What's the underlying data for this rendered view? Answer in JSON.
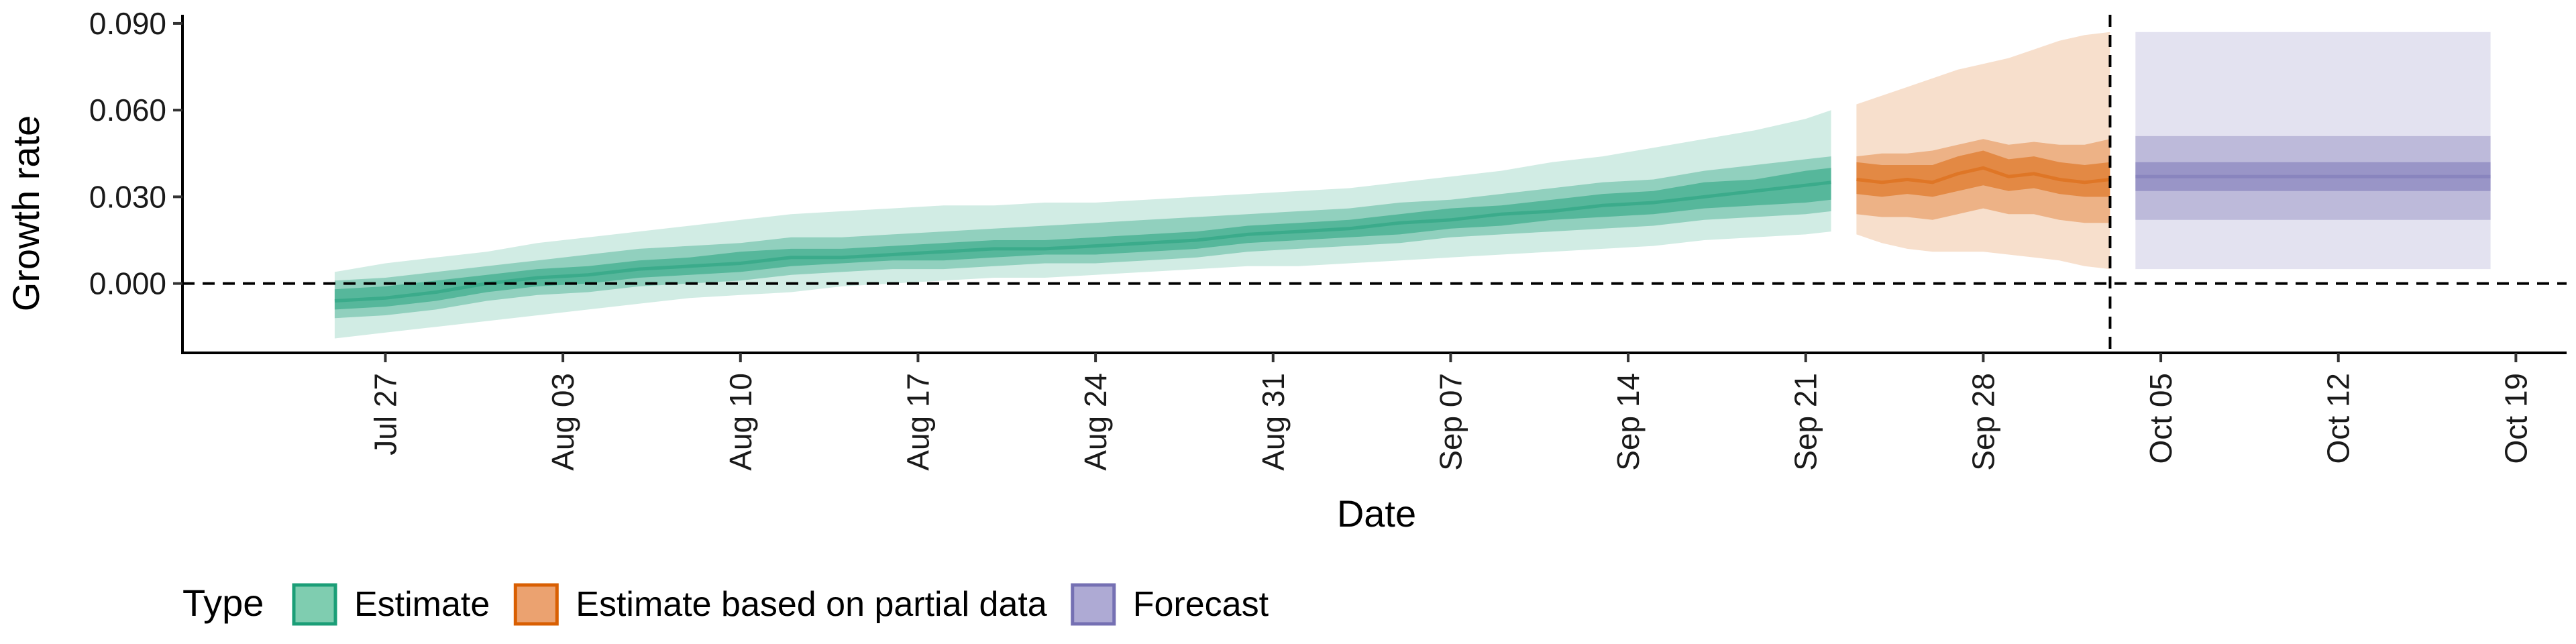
{
  "chart_data": {
    "type": "area",
    "xlabel": "Date",
    "ylabel": "Growth rate",
    "x_ticks": [
      "Jul 27",
      "Aug 03",
      "Aug 10",
      "Aug 17",
      "Aug 24",
      "Aug 31",
      "Sep 07",
      "Sep 14",
      "Sep 21",
      "Sep 28",
      "Oct 05",
      "Oct 12",
      "Oct 19"
    ],
    "x_tick_dates": [
      "2020-07-27",
      "2020-08-03",
      "2020-08-10",
      "2020-08-17",
      "2020-08-24",
      "2020-08-31",
      "2020-09-07",
      "2020-09-14",
      "2020-09-21",
      "2020-09-28",
      "2020-10-05",
      "2020-10-12",
      "2020-10-19"
    ],
    "xlim": [
      "2020-07-19",
      "2020-10-21"
    ],
    "y_ticks": [
      0.0,
      0.03,
      0.06,
      0.09
    ],
    "y_tick_labels": [
      "0.000",
      "0.030",
      "0.060",
      "0.090"
    ],
    "ylim": [
      -0.024,
      0.093
    ],
    "reference_lines": {
      "horizontal_y": 0.0,
      "vertical_x": "2020-10-03"
    },
    "legend": {
      "position": "bottom-left",
      "title": "Type",
      "entries": [
        {
          "label": "Estimate",
          "fill": "#7fcdb0",
          "stroke": "#1b9e77"
        },
        {
          "label": "Estimate based on partial data",
          "fill": "#eba270",
          "stroke": "#d95f02"
        },
        {
          "label": "Forecast",
          "fill": "#aeaad4",
          "stroke": "#7570b3"
        }
      ]
    },
    "series": [
      {
        "name": "Estimate",
        "color": "#1b9e77",
        "band_opacities": [
          0.2,
          0.35,
          0.5
        ],
        "x": [
          "2020-07-25",
          "2020-07-27",
          "2020-07-29",
          "2020-07-31",
          "2020-08-02",
          "2020-08-04",
          "2020-08-06",
          "2020-08-08",
          "2020-08-10",
          "2020-08-12",
          "2020-08-14",
          "2020-08-16",
          "2020-08-18",
          "2020-08-20",
          "2020-08-22",
          "2020-08-24",
          "2020-08-26",
          "2020-08-28",
          "2020-08-30",
          "2020-09-01",
          "2020-09-03",
          "2020-09-05",
          "2020-09-07",
          "2020-09-09",
          "2020-09-11",
          "2020-09-13",
          "2020-09-15",
          "2020-09-17",
          "2020-09-19",
          "2020-09-21",
          "2020-09-22"
        ],
        "median": [
          -0.006,
          -0.005,
          -0.003,
          0.0,
          0.002,
          0.003,
          0.005,
          0.006,
          0.007,
          0.009,
          0.009,
          0.01,
          0.011,
          0.012,
          0.012,
          0.013,
          0.014,
          0.015,
          0.017,
          0.018,
          0.019,
          0.021,
          0.022,
          0.024,
          0.025,
          0.027,
          0.028,
          0.03,
          0.032,
          0.034,
          0.035
        ],
        "inner": [
          [
            -0.009,
            -0.002
          ],
          [
            -0.008,
            -0.001
          ],
          [
            -0.006,
            0.001
          ],
          [
            -0.003,
            0.003
          ],
          [
            -0.001,
            0.005
          ],
          [
            0.0,
            0.006
          ],
          [
            0.002,
            0.008
          ],
          [
            0.003,
            0.009
          ],
          [
            0.004,
            0.011
          ],
          [
            0.006,
            0.012
          ],
          [
            0.007,
            0.012
          ],
          [
            0.008,
            0.013
          ],
          [
            0.008,
            0.014
          ],
          [
            0.009,
            0.015
          ],
          [
            0.01,
            0.015
          ],
          [
            0.01,
            0.016
          ],
          [
            0.011,
            0.017
          ],
          [
            0.012,
            0.018
          ],
          [
            0.014,
            0.02
          ],
          [
            0.015,
            0.021
          ],
          [
            0.016,
            0.022
          ],
          [
            0.017,
            0.024
          ],
          [
            0.019,
            0.026
          ],
          [
            0.02,
            0.027
          ],
          [
            0.022,
            0.029
          ],
          [
            0.023,
            0.031
          ],
          [
            0.024,
            0.032
          ],
          [
            0.026,
            0.035
          ],
          [
            0.027,
            0.036
          ],
          [
            0.028,
            0.039
          ],
          [
            0.029,
            0.04
          ]
        ],
        "middle": [
          [
            -0.012,
            0.001
          ],
          [
            -0.011,
            0.002
          ],
          [
            -0.009,
            0.004
          ],
          [
            -0.006,
            0.006
          ],
          [
            -0.004,
            0.008
          ],
          [
            -0.003,
            0.01
          ],
          [
            -0.001,
            0.012
          ],
          [
            0.0,
            0.013
          ],
          [
            0.001,
            0.014
          ],
          [
            0.003,
            0.016
          ],
          [
            0.004,
            0.016
          ],
          [
            0.005,
            0.017
          ],
          [
            0.005,
            0.018
          ],
          [
            0.006,
            0.019
          ],
          [
            0.007,
            0.02
          ],
          [
            0.007,
            0.021
          ],
          [
            0.008,
            0.022
          ],
          [
            0.009,
            0.023
          ],
          [
            0.011,
            0.024
          ],
          [
            0.012,
            0.025
          ],
          [
            0.013,
            0.026
          ],
          [
            0.014,
            0.028
          ],
          [
            0.016,
            0.029
          ],
          [
            0.017,
            0.031
          ],
          [
            0.018,
            0.033
          ],
          [
            0.019,
            0.035
          ],
          [
            0.02,
            0.036
          ],
          [
            0.022,
            0.039
          ],
          [
            0.023,
            0.041
          ],
          [
            0.024,
            0.043
          ],
          [
            0.025,
            0.044
          ]
        ],
        "outer": [
          [
            -0.019,
            0.004
          ],
          [
            -0.017,
            0.007
          ],
          [
            -0.015,
            0.009
          ],
          [
            -0.013,
            0.011
          ],
          [
            -0.011,
            0.014
          ],
          [
            -0.009,
            0.016
          ],
          [
            -0.007,
            0.018
          ],
          [
            -0.005,
            0.02
          ],
          [
            -0.004,
            0.022
          ],
          [
            -0.003,
            0.024
          ],
          [
            -0.001,
            0.025
          ],
          [
            0.0,
            0.026
          ],
          [
            0.001,
            0.027
          ],
          [
            0.002,
            0.027
          ],
          [
            0.002,
            0.028
          ],
          [
            0.003,
            0.028
          ],
          [
            0.004,
            0.029
          ],
          [
            0.005,
            0.03
          ],
          [
            0.006,
            0.031
          ],
          [
            0.006,
            0.032
          ],
          [
            0.007,
            0.033
          ],
          [
            0.008,
            0.035
          ],
          [
            0.009,
            0.037
          ],
          [
            0.01,
            0.039
          ],
          [
            0.011,
            0.042
          ],
          [
            0.012,
            0.044
          ],
          [
            0.013,
            0.047
          ],
          [
            0.015,
            0.05
          ],
          [
            0.016,
            0.053
          ],
          [
            0.017,
            0.057
          ],
          [
            0.018,
            0.06
          ]
        ]
      },
      {
        "name": "Estimate based on partial data",
        "color": "#d95f02",
        "band_opacities": [
          0.2,
          0.35,
          0.5
        ],
        "x": [
          "2020-09-23",
          "2020-09-24",
          "2020-09-25",
          "2020-09-26",
          "2020-09-27",
          "2020-09-28",
          "2020-09-29",
          "2020-09-30",
          "2020-10-01",
          "2020-10-02",
          "2020-10-03"
        ],
        "median": [
          0.036,
          0.035,
          0.036,
          0.035,
          0.038,
          0.04,
          0.037,
          0.038,
          0.036,
          0.035,
          0.036
        ],
        "inner": [
          [
            0.031,
            0.042
          ],
          [
            0.03,
            0.041
          ],
          [
            0.031,
            0.041
          ],
          [
            0.03,
            0.041
          ],
          [
            0.032,
            0.044
          ],
          [
            0.034,
            0.046
          ],
          [
            0.032,
            0.043
          ],
          [
            0.033,
            0.044
          ],
          [
            0.031,
            0.042
          ],
          [
            0.03,
            0.041
          ],
          [
            0.03,
            0.042
          ]
        ],
        "middle": [
          [
            0.024,
            0.044
          ],
          [
            0.023,
            0.045
          ],
          [
            0.023,
            0.045
          ],
          [
            0.022,
            0.046
          ],
          [
            0.024,
            0.048
          ],
          [
            0.026,
            0.05
          ],
          [
            0.024,
            0.048
          ],
          [
            0.024,
            0.049
          ],
          [
            0.022,
            0.048
          ],
          [
            0.021,
            0.048
          ],
          [
            0.021,
            0.05
          ]
        ],
        "outer": [
          [
            0.017,
            0.062
          ],
          [
            0.014,
            0.065
          ],
          [
            0.012,
            0.068
          ],
          [
            0.011,
            0.071
          ],
          [
            0.011,
            0.074
          ],
          [
            0.011,
            0.076
          ],
          [
            0.01,
            0.078
          ],
          [
            0.009,
            0.081
          ],
          [
            0.008,
            0.084
          ],
          [
            0.006,
            0.086
          ],
          [
            0.005,
            0.087
          ]
        ]
      },
      {
        "name": "Forecast",
        "color": "#7570b3",
        "band_opacities": [
          0.2,
          0.35,
          0.5
        ],
        "x": [
          "2020-10-04",
          "2020-10-18"
        ],
        "median": [
          0.037,
          0.037
        ],
        "inner": [
          [
            0.032,
            0.042
          ],
          [
            0.032,
            0.042
          ]
        ],
        "middle": [
          [
            0.022,
            0.051
          ],
          [
            0.022,
            0.051
          ]
        ],
        "outer": [
          [
            0.005,
            0.087
          ],
          [
            0.005,
            0.087
          ]
        ]
      }
    ]
  }
}
